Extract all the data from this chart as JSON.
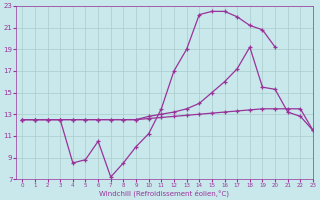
{
  "background_color": "#c8e8ec",
  "grid_color": "#aacccc",
  "line_color": "#993399",
  "xlabel": "Windchill (Refroidissement éolien,°C)",
  "xlim": [
    -0.5,
    23
  ],
  "ylim": [
    7,
    23
  ],
  "xticks": [
    0,
    1,
    2,
    3,
    4,
    5,
    6,
    7,
    8,
    9,
    10,
    11,
    12,
    13,
    14,
    15,
    16,
    17,
    18,
    19,
    20,
    21,
    22,
    23
  ],
  "yticks": [
    7,
    9,
    11,
    13,
    15,
    17,
    19,
    21,
    23
  ],
  "curve_top_x": [
    0,
    1,
    2,
    3,
    4,
    5,
    6,
    7,
    8,
    9,
    10,
    11,
    12,
    13,
    14,
    15,
    16,
    17,
    18,
    19,
    20
  ],
  "curve_top_y": [
    12.5,
    12.5,
    12.5,
    12.5,
    8.5,
    8.8,
    10.5,
    7.2,
    8.5,
    10.0,
    11.2,
    13.5,
    17.0,
    19.0,
    22.2,
    22.5,
    22.5,
    22.0,
    21.2,
    20.8,
    19.2
  ],
  "curve_env_x": [
    0,
    1,
    2,
    3,
    4,
    5,
    6,
    7,
    8,
    9,
    10,
    11,
    12,
    13,
    14,
    15,
    16,
    17,
    18,
    19,
    20,
    21,
    22,
    23
  ],
  "curve_env_y": [
    12.5,
    12.5,
    12.5,
    12.5,
    12.5,
    12.5,
    12.5,
    12.5,
    12.5,
    12.5,
    12.8,
    13.0,
    13.2,
    13.5,
    14.0,
    15.0,
    16.0,
    17.2,
    19.2,
    15.5,
    15.3,
    13.2,
    12.8,
    11.5
  ],
  "curve_flat_x": [
    0,
    1,
    2,
    3,
    4,
    5,
    6,
    7,
    8,
    9,
    10,
    11,
    12,
    13,
    14,
    15,
    16,
    17,
    18,
    19,
    20,
    21,
    22,
    23
  ],
  "curve_flat_y": [
    12.5,
    12.5,
    12.5,
    12.5,
    12.5,
    12.5,
    12.5,
    12.5,
    12.5,
    12.5,
    12.6,
    12.7,
    12.8,
    12.9,
    13.0,
    13.1,
    13.2,
    13.3,
    13.4,
    13.5,
    13.5,
    13.5,
    13.5,
    11.5
  ]
}
